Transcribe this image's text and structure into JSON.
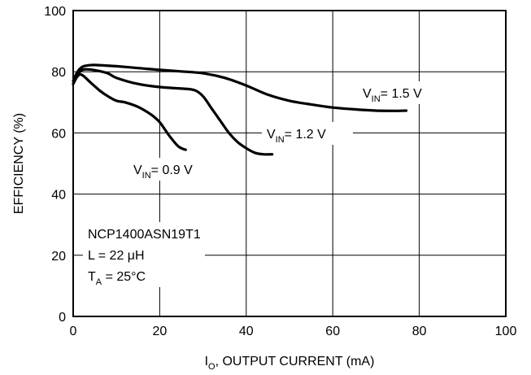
{
  "chart_data": {
    "type": "line",
    "xlabel_main": "I",
    "xlabel_sub": "O",
    "xlabel_rest": ", OUTPUT CURRENT (mA)",
    "ylabel": "EFFICIENCY (%)",
    "xlim": [
      0,
      100
    ],
    "ylim": [
      0,
      100
    ],
    "x_ticks": [
      0,
      20,
      40,
      60,
      80,
      100
    ],
    "y_ticks": [
      0,
      20,
      40,
      60,
      80,
      100
    ],
    "grid": true,
    "series": [
      {
        "name": "VIN= 1.5 V",
        "label_main": "V",
        "label_sub": "IN",
        "label_rest": "= 1.5 V",
        "x": [
          0,
          1,
          2,
          3,
          5,
          10,
          15,
          20,
          25,
          30,
          35,
          40,
          45,
          50,
          55,
          60,
          65,
          70,
          75,
          77
        ],
        "y": [
          77,
          80,
          81.5,
          82,
          82.2,
          81.8,
          81.2,
          80.6,
          80.1,
          79.5,
          78,
          75.5,
          72.5,
          70.5,
          69.3,
          68.3,
          67.7,
          67.3,
          67.2,
          67.3
        ]
      },
      {
        "name": "VIN= 1.2 V",
        "label_main": "V",
        "label_sub": "IN",
        "label_rest": "= 1.2 V",
        "x": [
          0,
          1,
          2,
          3,
          5,
          8,
          10,
          15,
          20,
          25,
          28,
          30,
          32,
          34,
          36,
          38,
          40,
          42,
          44,
          46
        ],
        "y": [
          76,
          79,
          80.5,
          80.8,
          80.5,
          79.5,
          78,
          76,
          75,
          74.5,
          74,
          72,
          68,
          64,
          60,
          57,
          55,
          53.5,
          53,
          53
        ]
      },
      {
        "name": "VIN= 0.9 V",
        "label_main": "V",
        "label_sub": "IN",
        "label_rest": "= 0.9 V",
        "x": [
          0,
          1,
          2,
          4,
          6,
          8,
          10,
          12,
          15,
          18,
          20,
          22,
          24,
          25,
          26
        ],
        "y": [
          76,
          78.5,
          79,
          76.5,
          74,
          72,
          70.5,
          70,
          68.5,
          66,
          63.5,
          59.5,
          56,
          55,
          54.5
        ]
      }
    ],
    "annotation": {
      "line1": "NCP1400ASN19T1",
      "line2": "L = 22 μH",
      "line3_main": "T",
      "line3_sub": "A",
      "line3_rest": " = 25°C"
    }
  }
}
